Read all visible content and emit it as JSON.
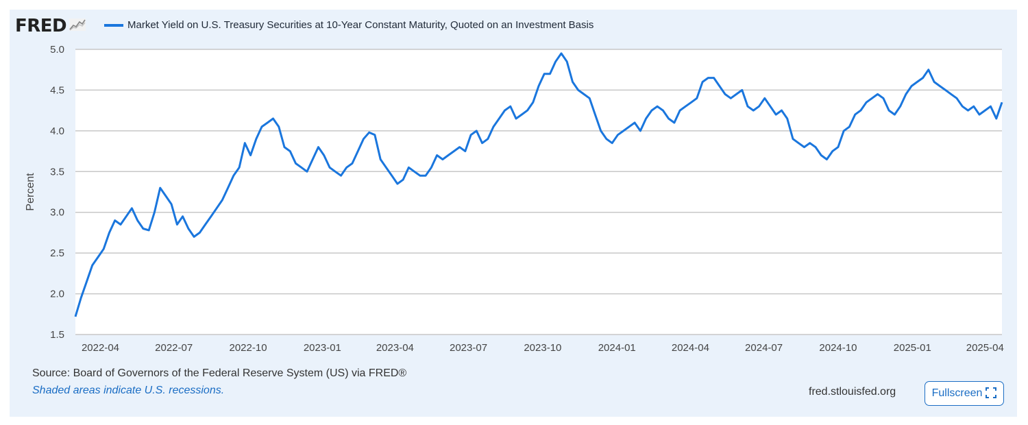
{
  "logo": {
    "text": "FRED",
    "icon": "chart-line-icon"
  },
  "legend": {
    "label": "Market Yield on U.S. Treasury Securities at 10-Year Constant Maturity, Quoted on an Investment Basis",
    "color": "#1a76dd"
  },
  "footer": {
    "source": "Source: Board of Governors of the Federal Reserve System (US) via FRED®",
    "note": "Shaded areas indicate U.S. recessions.",
    "link": "fred.stlouisfed.org",
    "fullscreen_label": "Fullscreen",
    "fullscreen_icon": "expand-icon"
  },
  "colors": {
    "background": "#eaf2fb",
    "plot_bg": "#ffffff",
    "line": "#1a76dd",
    "grid": "#c7c7c7",
    "link": "#1a6dc4"
  },
  "chart_data": {
    "type": "line",
    "title": "",
    "xlabel": "",
    "ylabel": "Percent",
    "ylim": [
      1.5,
      5.0
    ],
    "yticks": [
      "1.5",
      "2.0",
      "2.5",
      "3.0",
      "3.5",
      "4.0",
      "4.5",
      "5.0"
    ],
    "xticks": [
      "2022-04",
      "2022-07",
      "2022-10",
      "2023-01",
      "2023-04",
      "2023-07",
      "2023-10",
      "2024-01",
      "2024-04",
      "2024-07",
      "2024-10",
      "2025-01",
      "2025-04"
    ],
    "grid": true,
    "series": [
      {
        "name": "Market Yield on U.S. Treasury Securities at 10-Year Constant Maturity, Quoted on an Investment Basis",
        "x": [
          "2022-03-01",
          "2022-03-08",
          "2022-03-15",
          "2022-03-22",
          "2022-03-29",
          "2022-04-05",
          "2022-04-12",
          "2022-04-19",
          "2022-04-26",
          "2022-05-03",
          "2022-05-10",
          "2022-05-17",
          "2022-05-24",
          "2022-05-31",
          "2022-06-07",
          "2022-06-14",
          "2022-06-21",
          "2022-06-28",
          "2022-07-05",
          "2022-07-12",
          "2022-07-19",
          "2022-07-26",
          "2022-08-02",
          "2022-08-09",
          "2022-08-16",
          "2022-08-23",
          "2022-08-30",
          "2022-09-06",
          "2022-09-13",
          "2022-09-20",
          "2022-09-27",
          "2022-10-04",
          "2022-10-11",
          "2022-10-18",
          "2022-10-25",
          "2022-11-01",
          "2022-11-08",
          "2022-11-15",
          "2022-11-22",
          "2022-11-29",
          "2022-12-06",
          "2022-12-13",
          "2022-12-20",
          "2022-12-27",
          "2023-01-03",
          "2023-01-10",
          "2023-01-17",
          "2023-01-24",
          "2023-01-31",
          "2023-02-07",
          "2023-02-14",
          "2023-02-21",
          "2023-02-28",
          "2023-03-07",
          "2023-03-14",
          "2023-03-21",
          "2023-03-28",
          "2023-04-04",
          "2023-04-11",
          "2023-04-18",
          "2023-04-25",
          "2023-05-02",
          "2023-05-09",
          "2023-05-16",
          "2023-05-23",
          "2023-05-30",
          "2023-06-06",
          "2023-06-13",
          "2023-06-20",
          "2023-06-27",
          "2023-07-04",
          "2023-07-11",
          "2023-07-18",
          "2023-07-25",
          "2023-08-01",
          "2023-08-08",
          "2023-08-15",
          "2023-08-22",
          "2023-08-29",
          "2023-09-05",
          "2023-09-12",
          "2023-09-19",
          "2023-09-26",
          "2023-10-03",
          "2023-10-10",
          "2023-10-17",
          "2023-10-24",
          "2023-10-31",
          "2023-11-07",
          "2023-11-14",
          "2023-11-21",
          "2023-11-28",
          "2023-12-05",
          "2023-12-12",
          "2023-12-19",
          "2023-12-26",
          "2024-01-02",
          "2024-01-09",
          "2024-01-16",
          "2024-01-23",
          "2024-01-30",
          "2024-02-06",
          "2024-02-13",
          "2024-02-20",
          "2024-02-27",
          "2024-03-05",
          "2024-03-12",
          "2024-03-19",
          "2024-03-26",
          "2024-04-02",
          "2024-04-09",
          "2024-04-16",
          "2024-04-23",
          "2024-04-30",
          "2024-05-07",
          "2024-05-14",
          "2024-05-21",
          "2024-05-28",
          "2024-06-04",
          "2024-06-11",
          "2024-06-18",
          "2024-06-25",
          "2024-07-02",
          "2024-07-09",
          "2024-07-16",
          "2024-07-23",
          "2024-07-30",
          "2024-08-06",
          "2024-08-13",
          "2024-08-20",
          "2024-08-27",
          "2024-09-03",
          "2024-09-10",
          "2024-09-17",
          "2024-09-24",
          "2024-10-01",
          "2024-10-08",
          "2024-10-15",
          "2024-10-22",
          "2024-10-29",
          "2024-11-05",
          "2024-11-12",
          "2024-11-19",
          "2024-11-26",
          "2024-12-03",
          "2024-12-10",
          "2024-12-17",
          "2024-12-24",
          "2024-12-31",
          "2025-01-07",
          "2025-01-14",
          "2025-01-21",
          "2025-01-28",
          "2025-02-04",
          "2025-02-11",
          "2025-02-18",
          "2025-02-25",
          "2025-03-04",
          "2025-03-11",
          "2025-03-18",
          "2025-03-25",
          "2025-04-01",
          "2025-04-08",
          "2025-04-15",
          "2025-04-22"
        ],
        "values": [
          1.72,
          1.95,
          2.15,
          2.35,
          2.45,
          2.55,
          2.75,
          2.9,
          2.85,
          2.95,
          3.05,
          2.9,
          2.8,
          2.78,
          3.0,
          3.3,
          3.2,
          3.1,
          2.85,
          2.95,
          2.8,
          2.7,
          2.75,
          2.85,
          2.95,
          3.05,
          3.15,
          3.3,
          3.45,
          3.55,
          3.85,
          3.7,
          3.9,
          4.05,
          4.1,
          4.15,
          4.05,
          3.8,
          3.75,
          3.6,
          3.55,
          3.5,
          3.65,
          3.8,
          3.7,
          3.55,
          3.5,
          3.45,
          3.55,
          3.6,
          3.75,
          3.9,
          3.98,
          3.95,
          3.65,
          3.55,
          3.45,
          3.35,
          3.4,
          3.55,
          3.5,
          3.45,
          3.45,
          3.55,
          3.7,
          3.65,
          3.7,
          3.75,
          3.8,
          3.75,
          3.95,
          4.0,
          3.85,
          3.9,
          4.05,
          4.15,
          4.25,
          4.3,
          4.15,
          4.2,
          4.25,
          4.35,
          4.55,
          4.7,
          4.7,
          4.85,
          4.95,
          4.85,
          4.6,
          4.5,
          4.45,
          4.4,
          4.2,
          4.0,
          3.9,
          3.85,
          3.95,
          4.0,
          4.05,
          4.1,
          4.0,
          4.15,
          4.25,
          4.3,
          4.25,
          4.15,
          4.1,
          4.25,
          4.3,
          4.35,
          4.4,
          4.6,
          4.65,
          4.65,
          4.55,
          4.45,
          4.4,
          4.45,
          4.5,
          4.3,
          4.25,
          4.3,
          4.4,
          4.3,
          4.2,
          4.25,
          4.15,
          3.9,
          3.85,
          3.8,
          3.85,
          3.8,
          3.7,
          3.65,
          3.75,
          3.8,
          4.0,
          4.05,
          4.2,
          4.25,
          4.35,
          4.4,
          4.45,
          4.4,
          4.25,
          4.2,
          4.3,
          4.45,
          4.55,
          4.6,
          4.65,
          4.75,
          4.6,
          4.55,
          4.5,
          4.45,
          4.4,
          4.3,
          4.25,
          4.3,
          4.2,
          4.25,
          4.3,
          4.15,
          4.35
        ]
      }
    ]
  }
}
